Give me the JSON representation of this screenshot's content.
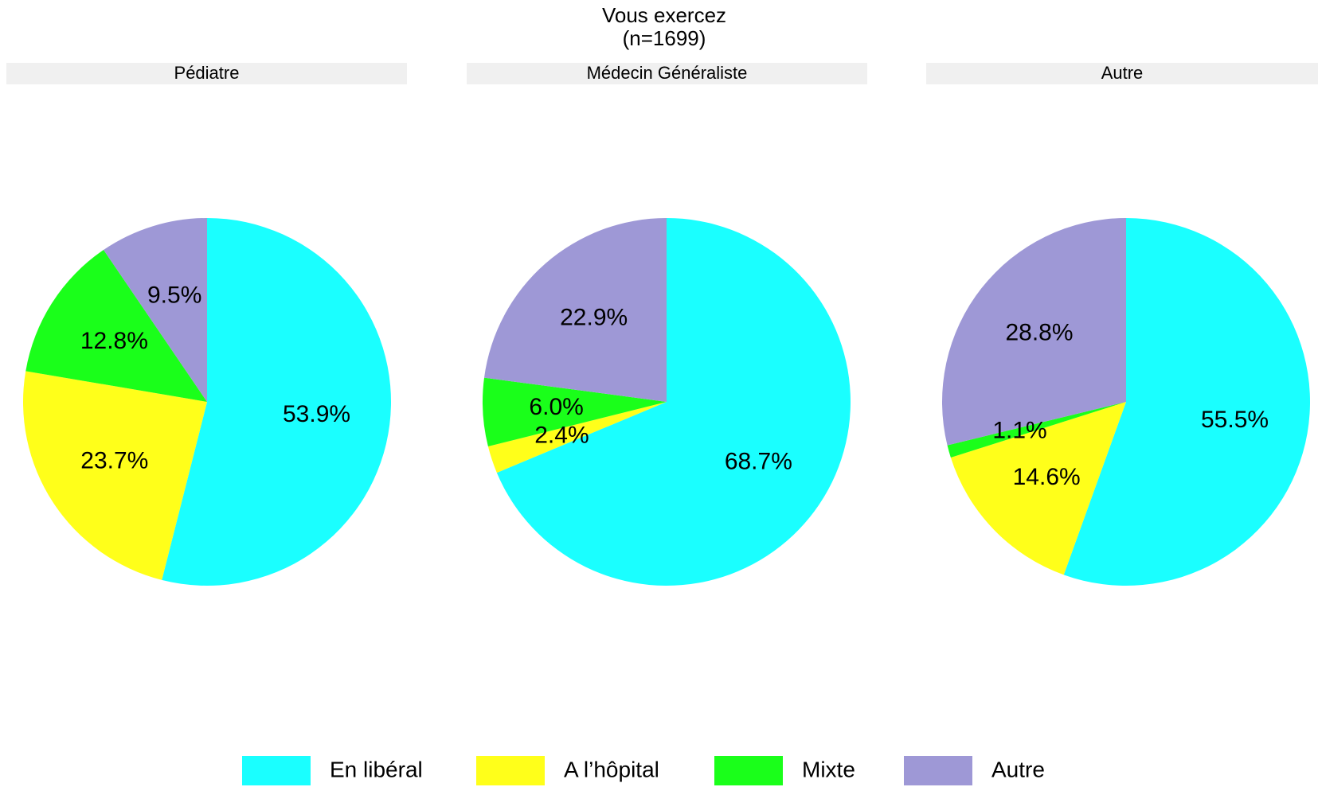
{
  "title": "Vous exercez",
  "subtitle": "(n=1699)",
  "chart_data": [
    {
      "type": "pie",
      "title": "Pédiatre",
      "categories": [
        "En libéral",
        "A l’hôpital",
        "Mixte",
        "Autre"
      ],
      "values": [
        53.9,
        23.7,
        12.8,
        9.5
      ],
      "value_labels": [
        "53.9%",
        "23.7%",
        "12.8%",
        "9.5%"
      ],
      "colors": [
        "#1affff",
        "#ffff1a",
        "#1aff1a",
        "#9e98d6"
      ]
    },
    {
      "type": "pie",
      "title": "Médecin Généraliste",
      "categories": [
        "En libéral",
        "A l’hôpital",
        "Mixte",
        "Autre"
      ],
      "values": [
        68.7,
        2.4,
        6.0,
        22.9
      ],
      "value_labels": [
        "68.7%",
        "2.4%",
        "6.0%",
        "22.9%"
      ],
      "colors": [
        "#1affff",
        "#ffff1a",
        "#1aff1a",
        "#9e98d6"
      ]
    },
    {
      "type": "pie",
      "title": "Autre",
      "categories": [
        "En libéral",
        "A l’hôpital",
        "Mixte",
        "Autre"
      ],
      "values": [
        55.5,
        14.6,
        1.1,
        28.8
      ],
      "value_labels": [
        "55.5%",
        "14.6%",
        "1.1%",
        "28.8%"
      ],
      "colors": [
        "#1affff",
        "#ffff1a",
        "#1aff1a",
        "#9e98d6"
      ]
    }
  ]
}
